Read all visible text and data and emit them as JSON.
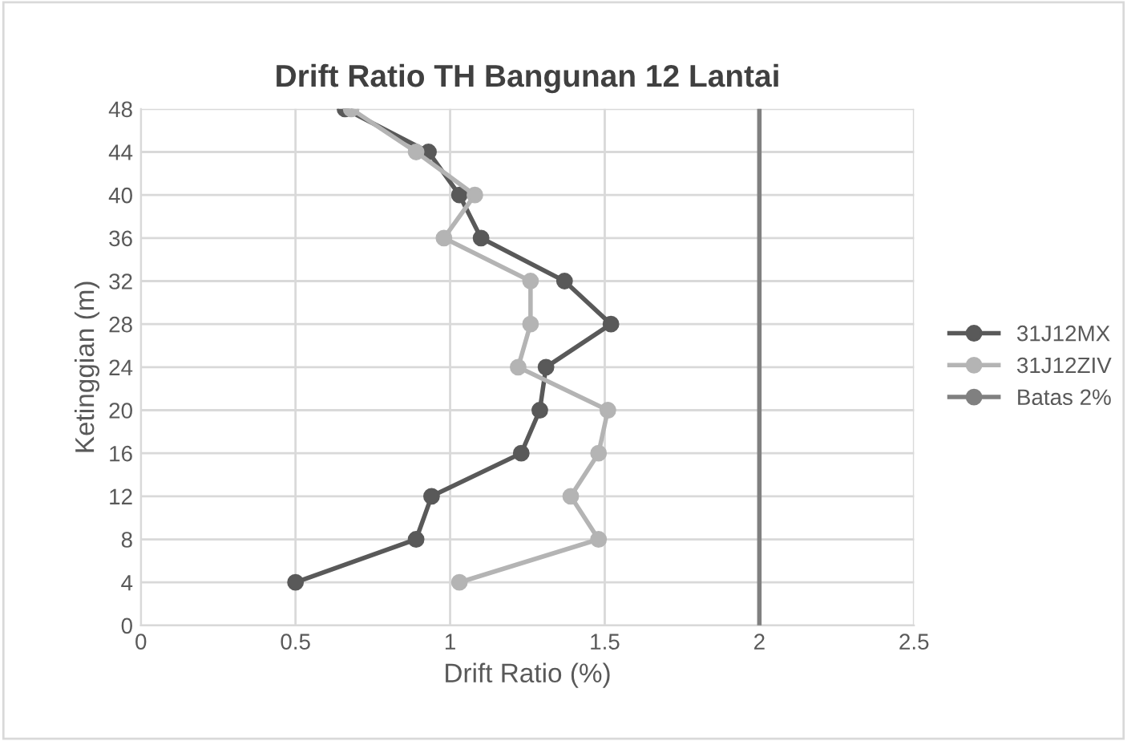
{
  "chart_data": {
    "type": "line",
    "title": "Drift Ratio TH Bangunan 12 Lantai",
    "xlabel": "Drift Ratio (%)",
    "ylabel": "Ketinggian (m)",
    "series": [
      {
        "name": "31J12MX",
        "color": "#595959",
        "x": [
          0.66,
          0.93,
          1.03,
          1.1,
          1.37,
          1.52,
          1.31,
          1.29,
          1.23,
          0.94,
          0.89,
          0.5
        ],
        "values": [
          48,
          44,
          40,
          36,
          32,
          28,
          24,
          20,
          16,
          12,
          8,
          4
        ]
      },
      {
        "name": "31J12ZIV",
        "color": "#b4b4b4",
        "x": [
          0.68,
          0.89,
          1.08,
          0.98,
          1.26,
          1.26,
          1.22,
          1.51,
          1.48,
          1.39,
          1.48,
          1.03
        ],
        "values": [
          48,
          44,
          40,
          36,
          32,
          28,
          24,
          20,
          16,
          12,
          8,
          4
        ]
      },
      {
        "name": "Batas 2%",
        "color": "#808080",
        "marker": "none",
        "x": [
          2,
          2
        ],
        "values": [
          0,
          48
        ]
      }
    ],
    "xlim": [
      0,
      2.5
    ],
    "xticks": [
      0,
      0.5,
      1,
      1.5,
      2,
      2.5
    ],
    "ylim": [
      0,
      48
    ],
    "yticks": [
      0,
      4,
      8,
      12,
      16,
      20,
      24,
      28,
      32,
      36,
      40,
      44,
      48
    ],
    "grid": true,
    "legend": "right",
    "marker": "circle",
    "line_style": "solid"
  }
}
